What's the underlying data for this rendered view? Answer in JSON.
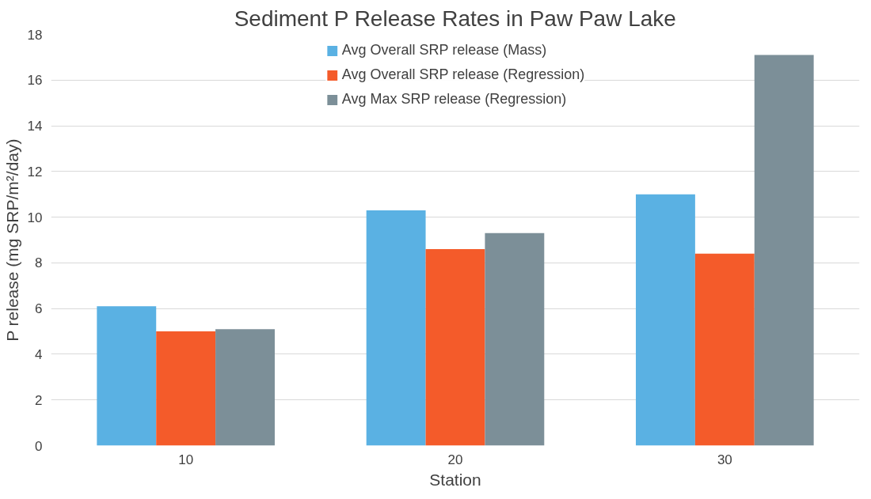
{
  "chart_data": {
    "type": "bar",
    "title": "Sediment P Release Rates in Paw Paw Lake",
    "xlabel": "Station",
    "ylabel": "P release (mg SRP/m²/day)",
    "categories": [
      "10",
      "20",
      "30"
    ],
    "series": [
      {
        "name": "Avg Overall SRP release (Mass)",
        "color": "#5ab1e3",
        "values": [
          6.1,
          10.3,
          11.0
        ]
      },
      {
        "name": "Avg Overall SRP release (Regression)",
        "color": "#f45b2a",
        "values": [
          5.0,
          8.6,
          8.4
        ]
      },
      {
        "name": "Avg Max SRP release (Regression)",
        "color": "#7c8f98",
        "values": [
          5.1,
          9.3,
          17.1
        ]
      }
    ],
    "ylim": [
      0,
      18
    ],
    "yticks": [
      0,
      2,
      4,
      6,
      8,
      10,
      12,
      14,
      16,
      18
    ],
    "grid": "y",
    "legend": "top"
  }
}
